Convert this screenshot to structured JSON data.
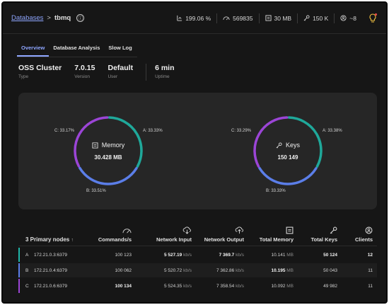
{
  "breadcrumb": {
    "root": "Databases",
    "separator": ">",
    "db": "tbmq",
    "info_icon": "ⓘ"
  },
  "stats": [
    {
      "icon": "cpu-icon",
      "value": "199.06 %"
    },
    {
      "icon": "gauge-icon",
      "value": "569835"
    },
    {
      "icon": "memory-icon",
      "value": "30 MB"
    },
    {
      "icon": "key-icon",
      "value": "150 K"
    },
    {
      "icon": "clients-icon",
      "value": "~8"
    }
  ],
  "tabs": [
    {
      "label": "Overview",
      "active": true
    },
    {
      "label": "Database Analysis",
      "active": false
    },
    {
      "label": "Slow Log",
      "active": false
    }
  ],
  "info": [
    {
      "value": "OSS Cluster",
      "label": "Type"
    },
    {
      "value": "7.0.15",
      "label": "Version"
    },
    {
      "value": "Default",
      "label": "User"
    },
    {
      "value": "6 min",
      "label": "Uptime"
    }
  ],
  "memory_chart": {
    "title": "Memory",
    "total": "30.428 MB",
    "slices": [
      {
        "label": "A: 33.33%",
        "value": 33.33,
        "color": "#1fa89a"
      },
      {
        "label": "B: 33.51%",
        "value": 33.51,
        "color": "#5b7ee8"
      },
      {
        "label": "C: 33.17%",
        "value": 33.17,
        "color": "#9b45d6"
      }
    ]
  },
  "keys_chart": {
    "title": "Keys",
    "total": "150 149",
    "slices": [
      {
        "label": "A: 33.38%",
        "value": 33.38,
        "color": "#1fa89a"
      },
      {
        "label": "B: 33.33%",
        "value": 33.33,
        "color": "#5b7ee8"
      },
      {
        "label": "C: 33.29%",
        "value": 33.29,
        "color": "#9b45d6"
      }
    ]
  },
  "table": {
    "nodes_header": "3 Primary nodes",
    "sort_arrow": "↑",
    "headers": [
      "Commands/s",
      "Network Input",
      "Network Output",
      "Total Memory",
      "Total Keys",
      "Clients"
    ],
    "rows": [
      {
        "letter": "A",
        "addr": "172.21.0.3:6379",
        "cmd": "100 123",
        "ni": "5 527.19",
        "ni_unit": "kb/s",
        "no": "7 369.7",
        "no_unit": "kb/s",
        "tm": "10.141",
        "tm_unit": "MB",
        "tk": "50 124",
        "cl": "12"
      },
      {
        "letter": "B",
        "addr": "172.21.0.4:6379",
        "cmd": "100 062",
        "ni": "5 520.72",
        "ni_unit": "kb/s",
        "no": "7 362.86",
        "no_unit": "kb/s",
        "tm": "10.195",
        "tm_unit": "MB",
        "tk": "50 043",
        "cl": "11"
      },
      {
        "letter": "C",
        "addr": "172.21.0.6:6379",
        "cmd": "100 134",
        "ni": "5 524.35",
        "ni_unit": "kb/s",
        "no": "7 358.54",
        "no_unit": "kb/s",
        "tm": "10.092",
        "tm_unit": "MB",
        "tk": "49 982",
        "cl": "11"
      }
    ]
  }
}
